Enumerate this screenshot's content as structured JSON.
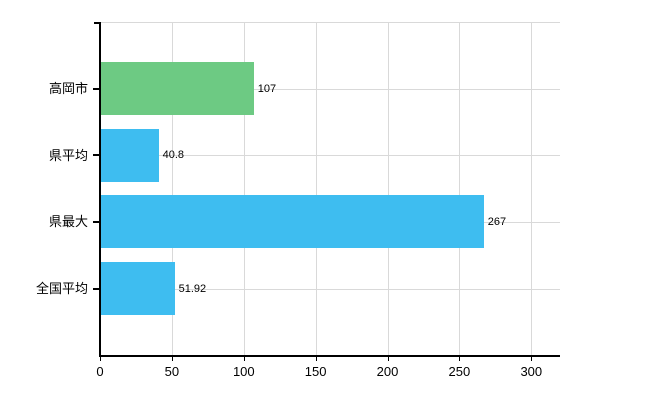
{
  "chart_data": {
    "type": "bar",
    "orientation": "horizontal",
    "title": "",
    "xlabel": "",
    "ylabel": "",
    "categories": [
      "高岡市",
      "県平均",
      "県最大",
      "全国平均"
    ],
    "values": [
      107,
      40.8,
      267,
      51.92
    ],
    "value_labels": [
      "107",
      "40.8",
      "267",
      "51.92"
    ],
    "bar_colors": [
      "#6dca83",
      "#3ebdf0",
      "#3ebdf0",
      "#3ebdf0"
    ],
    "x_ticks": [
      0,
      50,
      100,
      150,
      200,
      250,
      300
    ],
    "x_tick_labels": [
      "0",
      "50",
      "100",
      "150",
      "200",
      "250",
      "300"
    ],
    "xlim": [
      0,
      320
    ],
    "grid": true,
    "gridline_color": "#d9d9d9",
    "axis_color": "#000000",
    "background_color": "#ffffff",
    "legend_position": "none"
  }
}
